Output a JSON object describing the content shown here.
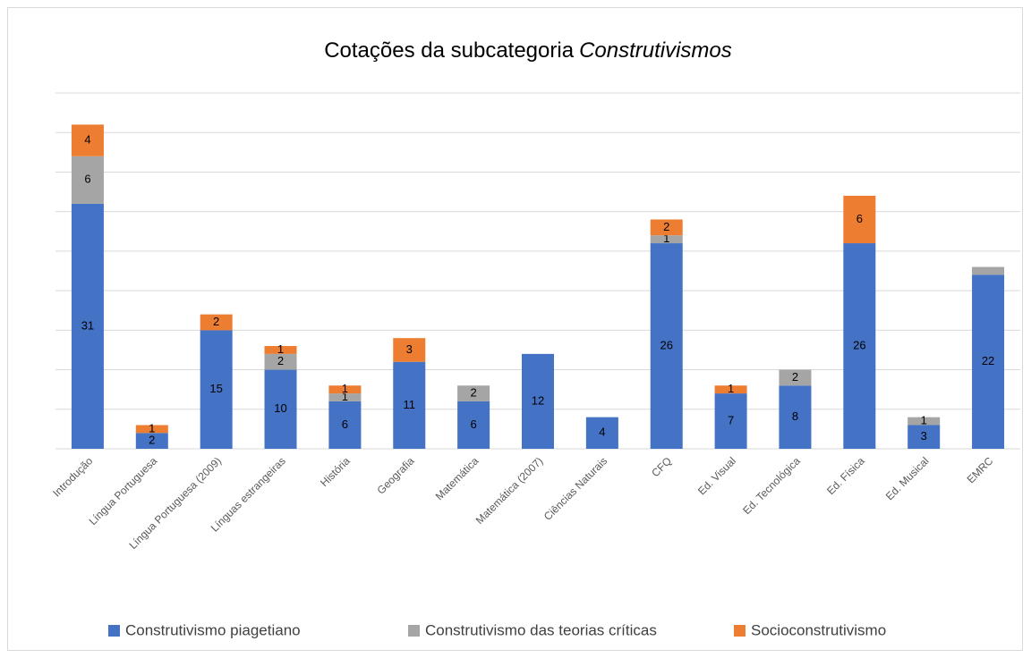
{
  "chart_data": {
    "type": "stacked_bar",
    "title": "Cotações da subcategoria",
    "title_italic": "Construtivismos",
    "categories": [
      "Introdução",
      "Língua Portuguesa",
      "Língua Portuguesa (2009)",
      "Línguas estrangeiras",
      "História",
      "Geografia",
      "Matemática",
      "Matemática (2007)",
      "Ciências Naturais",
      "CFQ",
      "Ed. Visual",
      "Ed. Tecnológica",
      "Ed. Física",
      "Ed. Musical",
      "EMRC"
    ],
    "series": [
      {
        "name": "Construtivismo piagetiano",
        "color": "#4472c4",
        "values": [
          31,
          2,
          15,
          10,
          6,
          11,
          6,
          12,
          4,
          26,
          7,
          8,
          26,
          3,
          22
        ],
        "value_labels": [
          "31",
          "2",
          "15",
          "10",
          "6",
          "11",
          "6",
          "12",
          "4",
          "26",
          "7",
          "8",
          "26",
          "3",
          "22"
        ]
      },
      {
        "name": "Construtivismo das teorias críticas",
        "color": "#a5a5a5",
        "values": [
          6,
          0,
          0,
          2,
          1,
          0,
          2,
          0,
          0,
          1,
          0,
          2,
          0,
          1,
          1
        ],
        "value_labels": [
          "6",
          null,
          null,
          "2",
          "1",
          null,
          "2",
          null,
          null,
          "1",
          null,
          "2",
          null,
          "1",
          null
        ]
      },
      {
        "name": "Socioconstrutivismo",
        "color": "#ed7d31",
        "values": [
          4,
          1,
          2,
          1,
          1,
          3,
          0,
          0,
          0,
          2,
          1,
          0,
          6,
          0,
          0
        ],
        "value_labels": [
          "4",
          "1",
          "2",
          "1",
          "1",
          "3",
          null,
          null,
          null,
          "2",
          "1",
          null,
          "6",
          null,
          null
        ]
      }
    ],
    "ylim": [
      0,
      45
    ],
    "yticks": [
      0,
      5,
      10,
      15,
      20,
      25,
      30,
      35,
      40,
      45
    ],
    "grid": true,
    "legend": "bottom"
  }
}
